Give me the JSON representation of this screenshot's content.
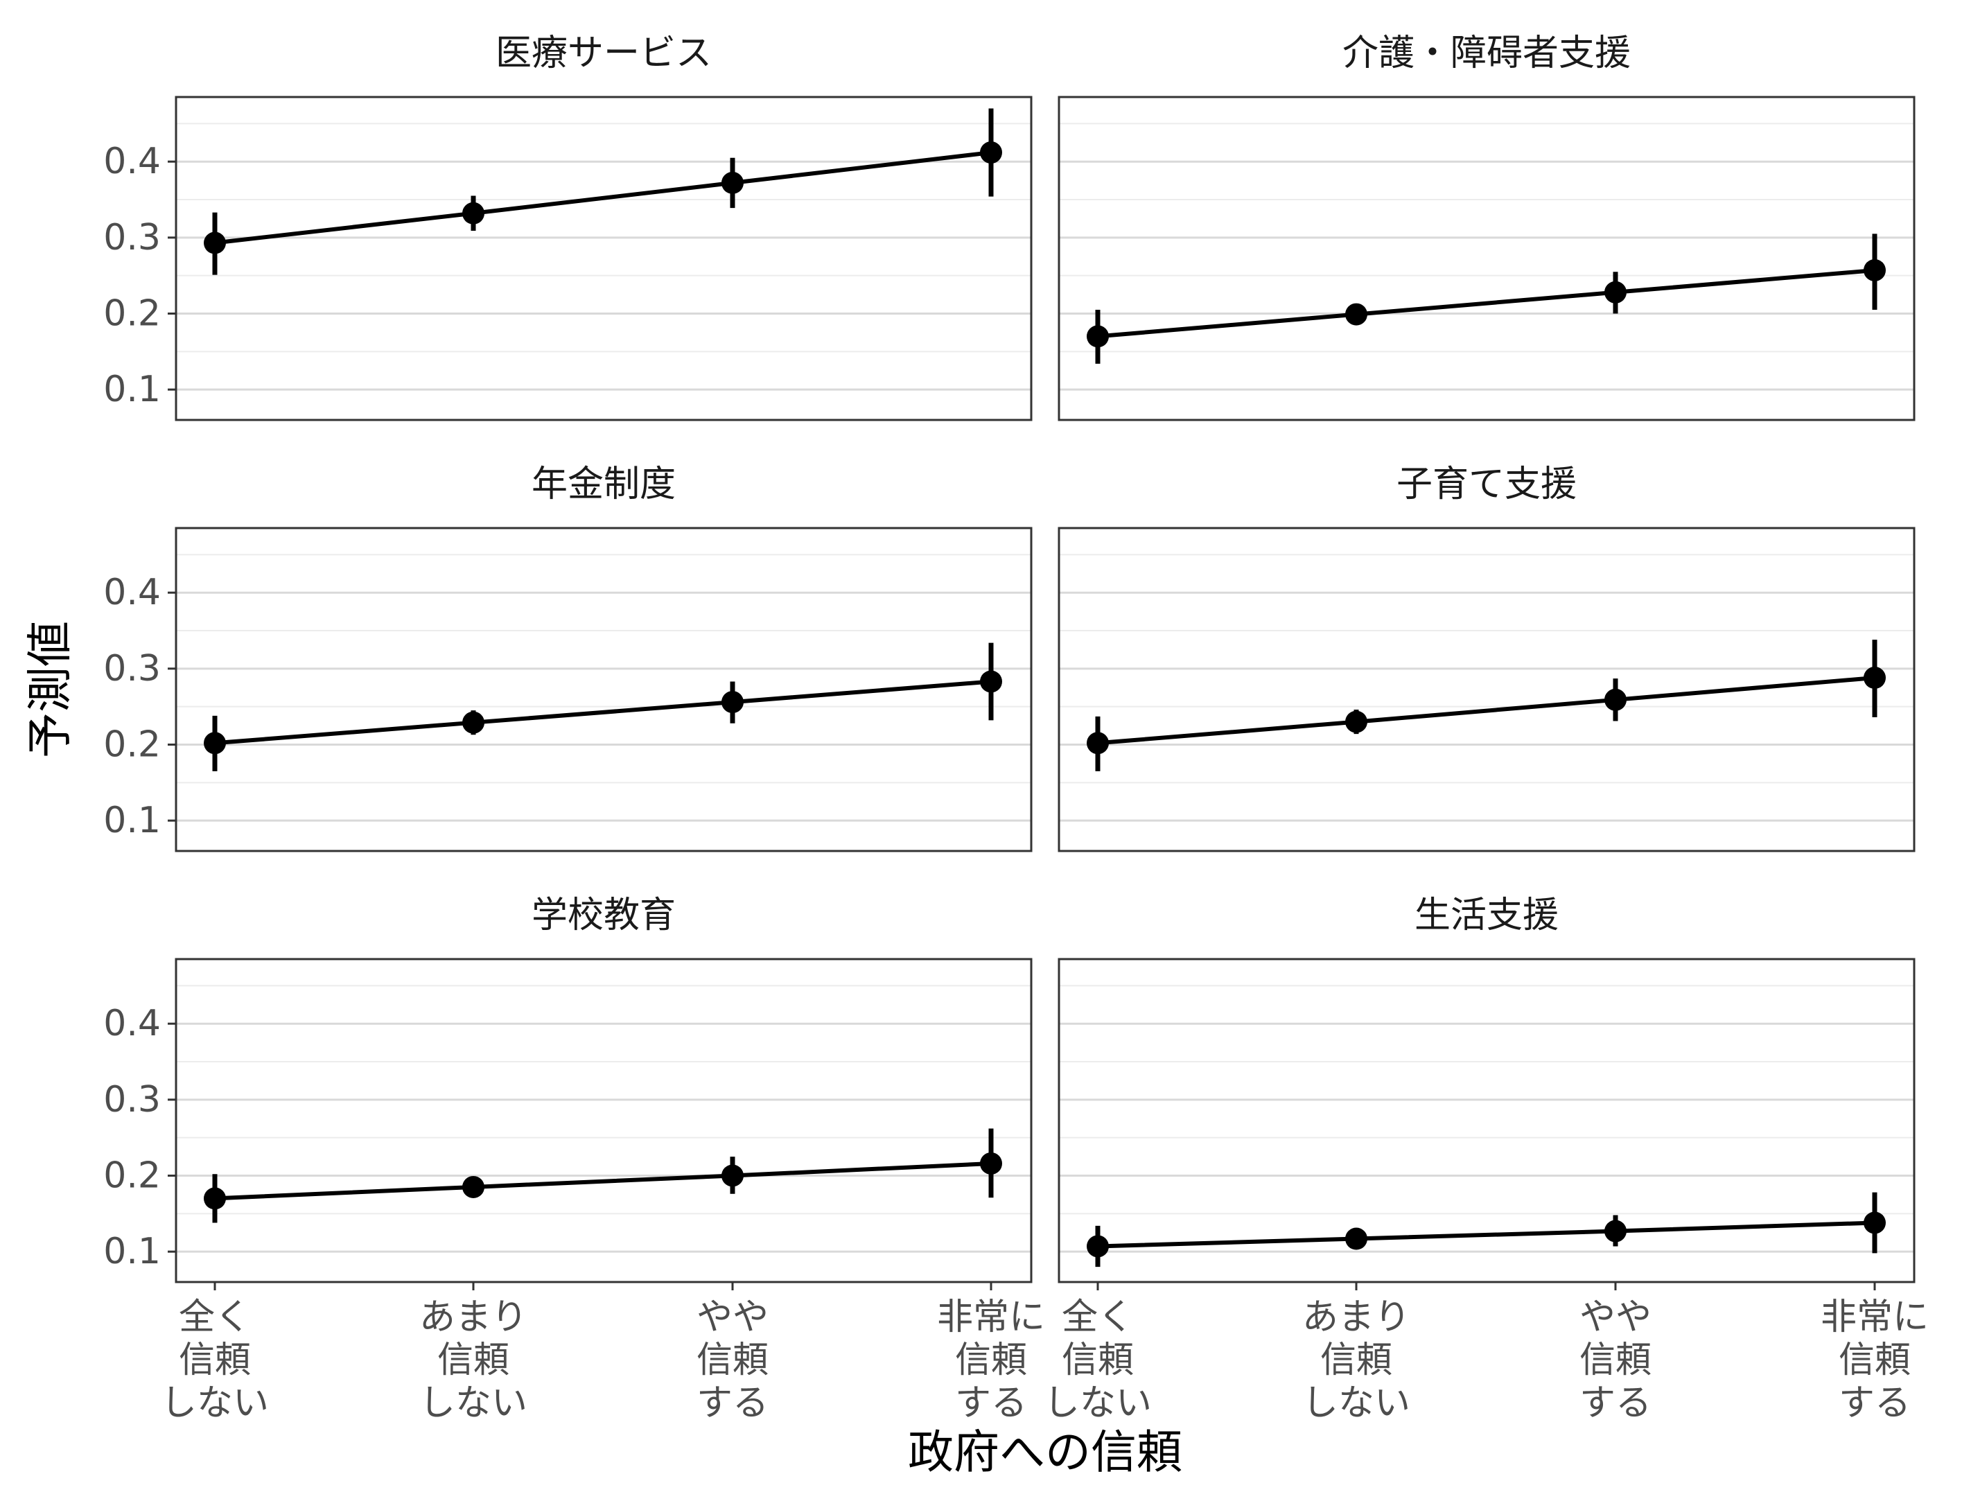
{
  "chart_data": {
    "type": "line",
    "title": "",
    "xlabel": "政府への信頼",
    "ylabel": "予測値",
    "categories": [
      "全く\n信頼\nしない",
      "あまり\n信頼\nしない",
      "やや\n信頼\nする",
      "非常に\n信頼\nする"
    ],
    "yticks": [
      "0.1",
      "0.2",
      "0.3",
      "0.4"
    ],
    "ylim": [
      0.06,
      0.485
    ],
    "grid": true,
    "colors": {
      "series": "#000000",
      "grid": "#d9d9d9",
      "border": "#333333"
    },
    "panels": [
      {
        "title": "医療サービス",
        "values": [
          0.293,
          0.332,
          0.372,
          0.412
        ],
        "lower": [
          0.251,
          0.309,
          0.339,
          0.354
        ],
        "upper": [
          0.333,
          0.355,
          0.405,
          0.47
        ]
      },
      {
        "title": "介護・障碍者支援",
        "values": [
          0.17,
          0.199,
          0.228,
          0.257
        ],
        "lower": [
          0.134,
          0.185,
          0.2,
          0.205
        ],
        "upper": [
          0.205,
          0.213,
          0.255,
          0.305
        ]
      },
      {
        "title": "年金制度",
        "values": [
          0.202,
          0.229,
          0.256,
          0.283
        ],
        "lower": [
          0.165,
          0.213,
          0.228,
          0.232
        ],
        "upper": [
          0.238,
          0.245,
          0.283,
          0.334
        ]
      },
      {
        "title": "子育て支援",
        "values": [
          0.202,
          0.23,
          0.259,
          0.288
        ],
        "lower": [
          0.165,
          0.214,
          0.231,
          0.236
        ],
        "upper": [
          0.237,
          0.246,
          0.287,
          0.338
        ]
      },
      {
        "title": "学校教育",
        "values": [
          0.17,
          0.185,
          0.2,
          0.216
        ],
        "lower": [
          0.138,
          0.172,
          0.176,
          0.171
        ],
        "upper": [
          0.202,
          0.198,
          0.225,
          0.262
        ]
      },
      {
        "title": "生活支援",
        "values": [
          0.107,
          0.117,
          0.127,
          0.138
        ],
        "lower": [
          0.08,
          0.109,
          0.107,
          0.098
        ],
        "upper": [
          0.134,
          0.125,
          0.148,
          0.178
        ]
      }
    ]
  }
}
